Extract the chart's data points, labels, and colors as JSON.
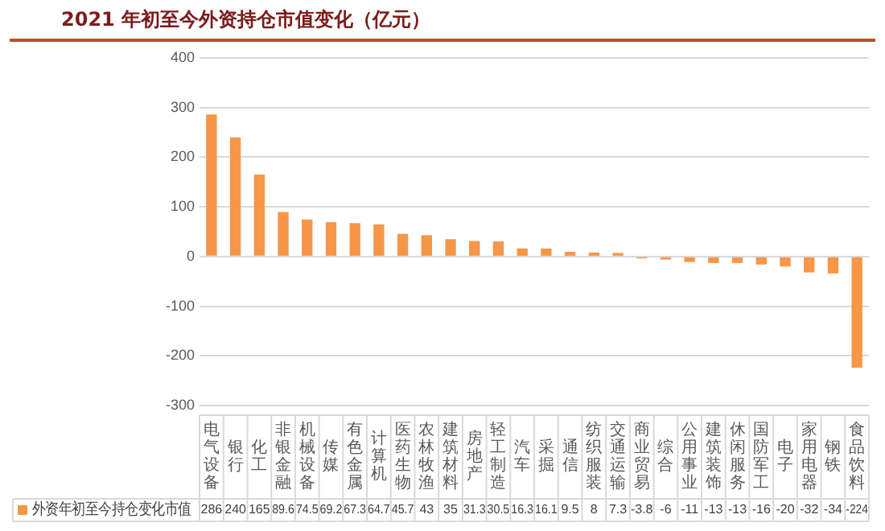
{
  "chart_data": {
    "type": "bar",
    "title": "2021 年初至今外资持仓市值变化（亿元）",
    "categories": [
      "电气设备",
      "银行",
      "化工",
      "非银金融",
      "机械设备",
      "传媒",
      "有色金属",
      "计算机",
      "医药生物",
      "农林牧渔",
      "建筑材料",
      "房地产",
      "轻工制造",
      "汽车",
      "采掘",
      "通信",
      "纺织服装",
      "交通运输",
      "商业贸易",
      "综合",
      "公用事业",
      "建筑装饰",
      "休闲服务",
      "国防军工",
      "电子",
      "家用电器",
      "钢铁",
      "食品饮料"
    ],
    "series": [
      {
        "name": "外资年初至今持仓变化市值",
        "color": "#f79646",
        "values": [
          286,
          240,
          165,
          89.6,
          74.5,
          69.2,
          67.3,
          64.7,
          45.7,
          43,
          35,
          31.3,
          30.5,
          16.3,
          16.1,
          9.5,
          8,
          7.3,
          -3.8,
          -6,
          -11,
          -13,
          -13,
          -16,
          -20,
          -32,
          -34,
          -224
        ]
      }
    ],
    "ylim": [
      -300,
      400
    ],
    "yticks": [
      -300,
      -200,
      -100,
      0,
      100,
      200,
      300,
      400
    ],
    "grid": "y",
    "legend": "bottom",
    "data_labels": true
  }
}
